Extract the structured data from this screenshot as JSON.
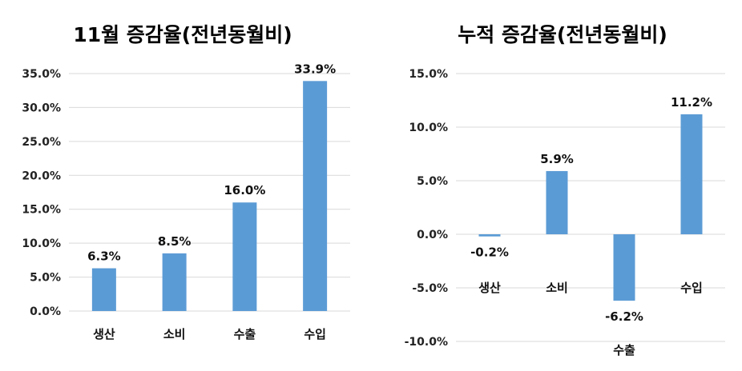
{
  "chart_data": [
    {
      "type": "bar",
      "title": "11월 증감율(전년동월비)",
      "categories": [
        "생산",
        "소비",
        "수출",
        "수입"
      ],
      "values": [
        6.3,
        8.5,
        16.0,
        33.9
      ],
      "data_labels": [
        "6.3%",
        "8.5%",
        "16.0%",
        "33.9%"
      ],
      "ylim": [
        0,
        35
      ],
      "yticks": [
        "0.0%",
        "5.0%",
        "10.0%",
        "15.0%",
        "20.0%",
        "25.0%",
        "30.0%",
        "35.0%"
      ],
      "grid": true,
      "bar_color": "#5b9bd5"
    },
    {
      "type": "bar",
      "title": "누적 증감율(전년동월비)",
      "categories": [
        "생산",
        "소비",
        "수출",
        "수입"
      ],
      "values": [
        -0.2,
        5.9,
        -6.2,
        11.2
      ],
      "data_labels": [
        "-0.2%",
        "5.9%",
        "-6.2%",
        "11.2%"
      ],
      "ylim": [
        -10,
        15
      ],
      "yticks": [
        "-10.0%",
        "-5.0%",
        "0.0%",
        "5.0%",
        "10.0%",
        "15.0%"
      ],
      "grid": true,
      "bar_color": "#5b9bd5"
    }
  ]
}
